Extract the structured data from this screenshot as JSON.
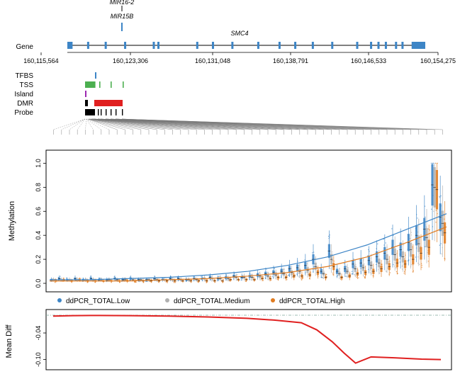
{
  "gene_track": {
    "label": "Gene",
    "gene_name": "SMC4",
    "mirna_labels": [
      "MIR16-2",
      "MIR15B"
    ],
    "coords": [
      "160,115,564",
      "160,123,306",
      "160,131,048",
      "160,138,791",
      "160,146,533",
      "160,154,275"
    ],
    "coord_values": [
      160115564,
      160123306,
      160131048,
      160138791,
      160146533,
      160154275
    ],
    "exon_starts": [
      160115900,
      160117700,
      160119600,
      160121700,
      160124800,
      160125300,
      160129500,
      160131200,
      160133300,
      160136100,
      160138400,
      160140100,
      160142000,
      160144100,
      160146800,
      160148300,
      160149100,
      160149900,
      160151000,
      160151700,
      160152800
    ],
    "color": "#3d85c6"
  },
  "annotation_tracks": {
    "labels": [
      "TFBS",
      "TSS",
      "Island",
      "DMR",
      "Probe"
    ],
    "colors": {
      "tfbs": "#3d85c6",
      "tss": "#4caf50",
      "island": "#9c27b0",
      "dmr": "#e02020",
      "probe": "#000000"
    }
  },
  "chart_data": [
    {
      "type": "box",
      "ylabel": "Methylation",
      "ylim": [
        0,
        1.05
      ],
      "yticks": [
        "0.0",
        "0.2",
        "0.4",
        "0.6",
        "0.8",
        "1.0"
      ],
      "ytick_values": [
        0,
        0.2,
        0.4,
        0.6,
        0.8,
        1.0
      ],
      "probe_count": 50,
      "legend": [
        "ddPCR_TOTAL.Low",
        "ddPCR_TOTAL.Medium",
        "ddPCR_TOTAL.High"
      ],
      "legend_position": "bottom",
      "colors": [
        "#3d85c6",
        "#b0b0b0",
        "#e07b20"
      ],
      "series": [
        {
          "name": "ddPCR_TOTAL.Low",
          "medians": [
            0.03,
            0.04,
            0.03,
            0.04,
            0.03,
            0.04,
            0.03,
            0.03,
            0.04,
            0.03,
            0.04,
            0.03,
            0.03,
            0.04,
            0.03,
            0.04,
            0.04,
            0.03,
            0.04,
            0.04,
            0.05,
            0.04,
            0.05,
            0.06,
            0.05,
            0.06,
            0.07,
            0.08,
            0.09,
            0.1,
            0.12,
            0.13,
            0.15,
            0.2,
            0.1,
            0.27,
            0.1,
            0.12,
            0.16,
            0.17,
            0.19,
            0.22,
            0.25,
            0.3,
            0.28,
            0.34,
            0.4,
            0.45,
            0.82,
            0.55
          ]
        },
        {
          "name": "ddPCR_TOTAL.Medium",
          "medians": [
            0.03,
            0.03,
            0.03,
            0.03,
            0.03,
            0.03,
            0.03,
            0.03,
            0.03,
            0.03,
            0.03,
            0.03,
            0.03,
            0.03,
            0.03,
            0.03,
            0.03,
            0.03,
            0.03,
            0.04,
            0.04,
            0.04,
            0.04,
            0.05,
            0.05,
            0.05,
            0.06,
            0.06,
            0.07,
            0.08,
            0.09,
            0.1,
            0.11,
            0.14,
            0.08,
            0.2,
            0.08,
            0.1,
            0.12,
            0.13,
            0.15,
            0.17,
            0.2,
            0.24,
            0.22,
            0.28,
            0.33,
            0.38,
            0.8,
            0.5
          ]
        },
        {
          "name": "ddPCR_TOTAL.High",
          "medians": [
            0.02,
            0.03,
            0.02,
            0.03,
            0.02,
            0.02,
            0.02,
            0.02,
            0.02,
            0.02,
            0.02,
            0.02,
            0.02,
            0.02,
            0.02,
            0.02,
            0.02,
            0.02,
            0.02,
            0.02,
            0.02,
            0.02,
            0.03,
            0.03,
            0.03,
            0.03,
            0.04,
            0.04,
            0.05,
            0.05,
            0.06,
            0.06,
            0.07,
            0.09,
            0.05,
            0.14,
            0.05,
            0.06,
            0.08,
            0.09,
            0.1,
            0.12,
            0.14,
            0.17,
            0.16,
            0.2,
            0.25,
            0.3,
            0.78,
            0.42
          ]
        }
      ],
      "trend_low": [
        0.03,
        0.03,
        0.04,
        0.05,
        0.07,
        0.1,
        0.15,
        0.22,
        0.32,
        0.45,
        0.58
      ],
      "trend_high": [
        0.02,
        0.02,
        0.02,
        0.03,
        0.04,
        0.06,
        0.09,
        0.14,
        0.22,
        0.34,
        0.47
      ]
    },
    {
      "type": "line",
      "ylabel": "Mean Diff",
      "ylim": [
        -0.115,
        0.0
      ],
      "yticks": [
        "-0.04",
        "-0.10"
      ],
      "ytick_values": [
        -0.04,
        -0.1
      ],
      "reference_line": 0.0,
      "x": [
        0,
        0.05,
        0.12,
        0.2,
        0.3,
        0.4,
        0.5,
        0.57,
        0.64,
        0.68,
        0.72,
        0.75,
        0.78,
        0.82,
        0.88,
        0.95,
        1.0
      ],
      "values": [
        -0.002,
        -0.001,
        -0.0005,
        -0.001,
        -0.002,
        -0.004,
        -0.007,
        -0.011,
        -0.017,
        -0.033,
        -0.06,
        -0.085,
        -0.108,
        -0.094,
        -0.096,
        -0.099,
        -0.1
      ]
    }
  ]
}
